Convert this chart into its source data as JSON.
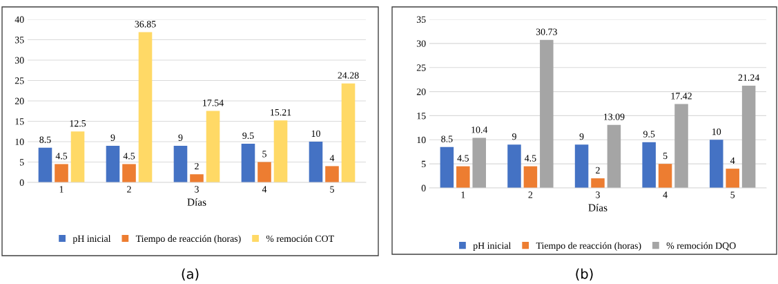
{
  "chart_data": [
    {
      "type": "bar",
      "xlabel": "Días",
      "categories": [
        "1",
        "2",
        "3",
        "4",
        "5"
      ],
      "series": [
        {
          "name": "pH inicial",
          "color": "#4472c4",
          "values": [
            8.5,
            9,
            9,
            9.5,
            10
          ]
        },
        {
          "name": "Tiempo de reacción (horas)",
          "color": "#ed7d31",
          "values": [
            4.5,
            4.5,
            2,
            5,
            4
          ]
        },
        {
          "name": "% remoción COT",
          "color": "#ffd966",
          "values": [
            12.5,
            36.85,
            17.54,
            15.21,
            24.28
          ]
        }
      ],
      "ylim": [
        0,
        40
      ],
      "yticks": [
        0,
        5,
        10,
        15,
        20,
        25,
        30,
        35,
        40
      ],
      "grid": "y",
      "legend": "bottom",
      "data_labels": true,
      "annotations": [
        "(a)"
      ]
    },
    {
      "type": "bar",
      "xlabel": "Días",
      "categories": [
        "1",
        "2",
        "3",
        "4",
        "5"
      ],
      "series": [
        {
          "name": "pH inicial",
          "color": "#4472c4",
          "values": [
            8.5,
            9,
            9,
            9.5,
            10
          ]
        },
        {
          "name": "Tiempo de reacción (horas)",
          "color": "#ed7d31",
          "values": [
            4.5,
            4.5,
            2,
            5,
            4
          ]
        },
        {
          "name": "% remoción DQO",
          "color": "#a5a5a5",
          "values": [
            10.4,
            30.73,
            13.09,
            17.42,
            21.24
          ]
        }
      ],
      "ylim": [
        0,
        35
      ],
      "yticks": [
        0,
        5,
        10,
        15,
        20,
        25,
        30,
        35
      ],
      "grid": "y",
      "legend": "bottom",
      "data_labels": true,
      "annotations": [
        "(b)"
      ]
    }
  ]
}
